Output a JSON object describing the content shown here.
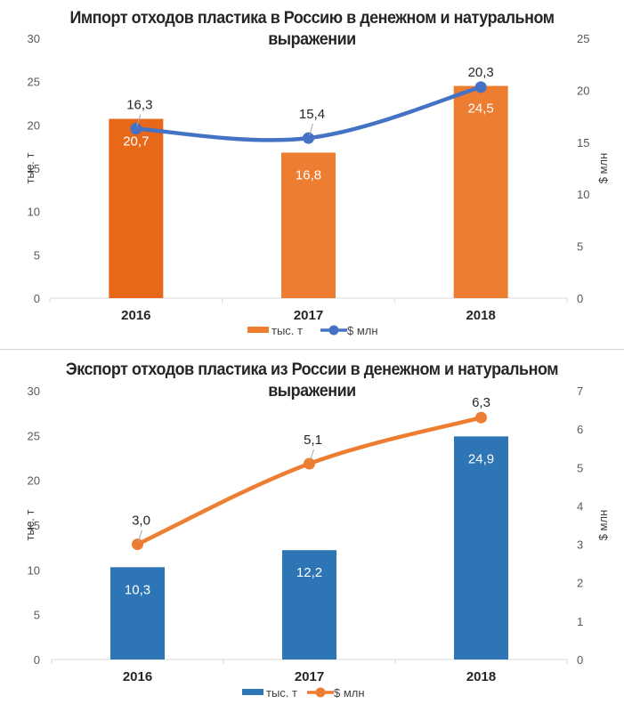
{
  "chart_data": [
    {
      "id": "import",
      "type": "bar+line",
      "title_line1": "Импорт отходов пластика в Россию в денежном и натуральном",
      "title_line2": "выражении",
      "categories": [
        "2016",
        "2017",
        "2018"
      ],
      "series": [
        {
          "name": "тыс. т",
          "type": "bar",
          "axis": "left",
          "values": [
            20.7,
            16.8,
            24.5
          ],
          "labels": [
            "20,7",
            "16,8",
            "24,5"
          ],
          "color": "#ED7D31",
          "highlight_color": "#E8681A",
          "highlight_index": 0
        },
        {
          "name": "$ млн",
          "type": "line",
          "axis": "right",
          "values": [
            16.3,
            15.4,
            20.3
          ],
          "labels": [
            "16,3",
            "15,4",
            "20,3"
          ],
          "color": "#4472C4"
        }
      ],
      "ylabel_left": "тыс. т",
      "ylabel_right": "$ млн",
      "ylim_left": [
        0,
        30
      ],
      "yticks_left": [
        0,
        5,
        10,
        15,
        20,
        25,
        30
      ],
      "ylim_right": [
        0,
        25
      ],
      "yticks_right": [
        0,
        5,
        10,
        15,
        20,
        25
      ],
      "grid": false,
      "legend": "bottom"
    },
    {
      "id": "export",
      "type": "bar+line",
      "title_line1": "Экспорт отходов пластика из России в денежном и натуральном",
      "title_line2": "выражении",
      "categories": [
        "2016",
        "2017",
        "2018"
      ],
      "series": [
        {
          "name": "тыс. т",
          "type": "bar",
          "axis": "left",
          "values": [
            10.3,
            12.2,
            24.9
          ],
          "labels": [
            "10,3",
            "12,2",
            "24,9"
          ],
          "color": "#2E75B6"
        },
        {
          "name": "$ млн",
          "type": "line",
          "axis": "right",
          "values": [
            3.0,
            5.1,
            6.3
          ],
          "labels": [
            "3,0",
            "5,1",
            "6,3"
          ],
          "color": "#ED7D31"
        }
      ],
      "ylabel_left": "тыс. т",
      "ylabel_right": "$ млн",
      "ylim_left": [
        0,
        30
      ],
      "yticks_left": [
        0,
        5,
        10,
        15,
        20,
        25,
        30
      ],
      "ylim_right": [
        0,
        7
      ],
      "yticks_right": [
        0,
        1,
        2,
        3,
        4,
        5,
        6,
        7
      ],
      "grid": false,
      "legend": "bottom"
    }
  ]
}
